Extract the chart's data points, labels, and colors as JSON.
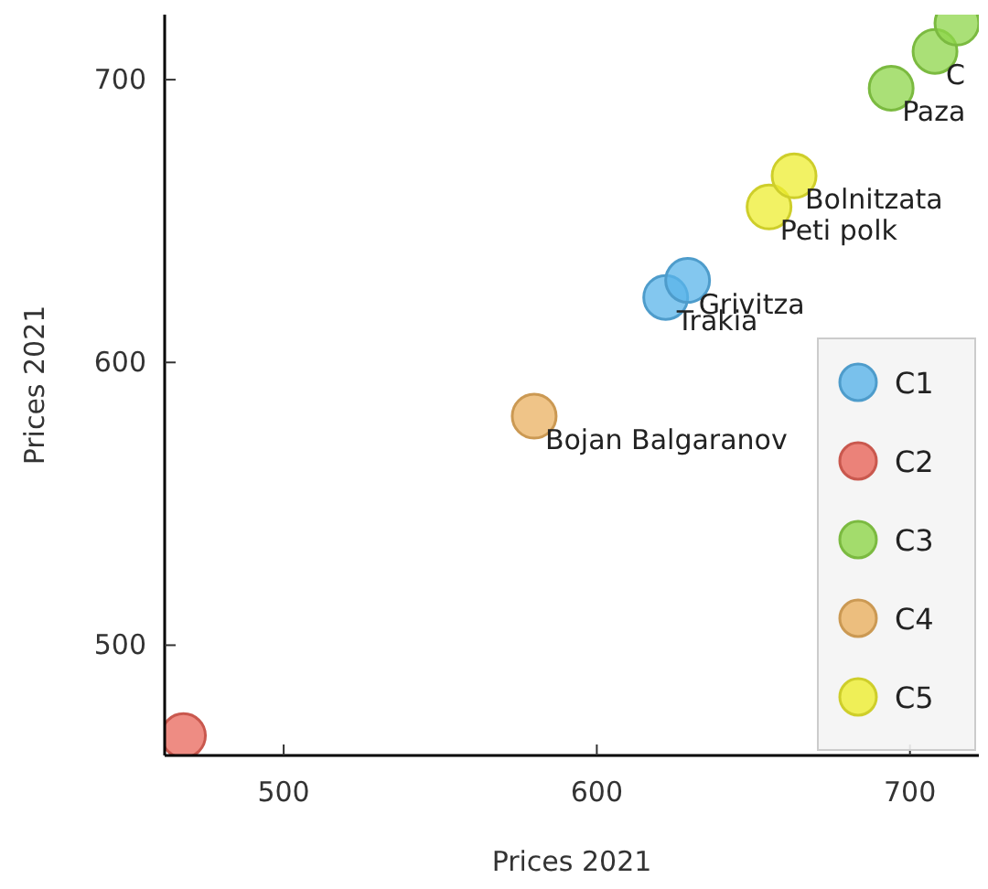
{
  "chart_data": {
    "type": "scatter",
    "xlabel": "Prices 2021",
    "ylabel": "Prices 2021",
    "xlim": [
      462,
      722
    ],
    "ylim": [
      461,
      723
    ],
    "xticks": [
      500,
      600,
      700
    ],
    "yticks": [
      500,
      600,
      700
    ],
    "marker": "circle",
    "legend": "right",
    "grid": false,
    "series": [
      {
        "name": "C1",
        "color": "#5ab4ea",
        "x": [
          622,
          629
        ],
        "values": [
          623,
          629
        ]
      },
      {
        "name": "C2",
        "color": "#e8655a",
        "x": [
          468
        ],
        "values": [
          468
        ]
      },
      {
        "name": "C3",
        "color": "#8ed64a",
        "x": [
          694,
          708,
          715
        ],
        "values": [
          697,
          710,
          720
        ]
      },
      {
        "name": "C4",
        "color": "#eab060",
        "x": [
          580
        ],
        "values": [
          581
        ]
      },
      {
        "name": "C5",
        "color": "#eeee30",
        "x": [
          655,
          663
        ],
        "values": [
          655,
          666
        ]
      }
    ],
    "annotations": [
      {
        "text": "Grivitza",
        "x": 629,
        "y": 629
      },
      {
        "text": "Trakia",
        "x": 622,
        "y": 623
      },
      {
        "text": "Bojan Balgaranov",
        "x": 580,
        "y": 581
      },
      {
        "text": "Bolnitzata",
        "x": 663,
        "y": 666
      },
      {
        "text": "Peti polk",
        "x": 655,
        "y": 655
      },
      {
        "text": "Paza",
        "x": 694,
        "y": 697
      },
      {
        "text": "C",
        "x": 708,
        "y": 710
      }
    ]
  }
}
